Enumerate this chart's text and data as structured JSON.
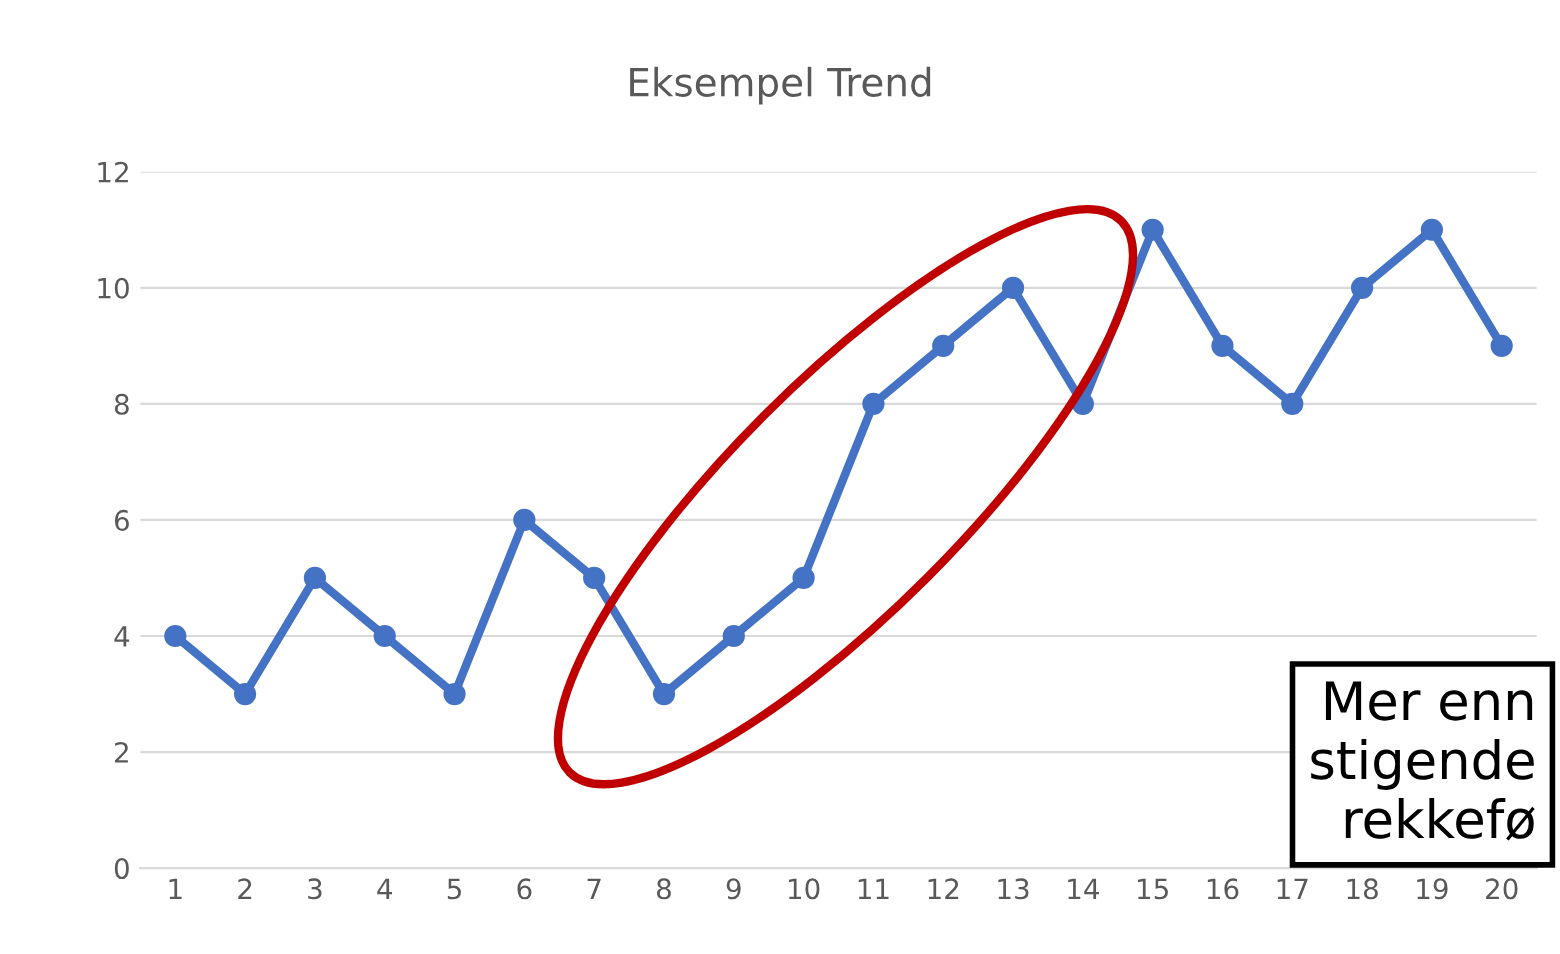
{
  "chart_data": {
    "type": "line",
    "title": "Eksempel Trend",
    "categories": [
      "1",
      "2",
      "3",
      "4",
      "5",
      "6",
      "7",
      "8",
      "9",
      "10",
      "11",
      "12",
      "13",
      "14",
      "15",
      "16",
      "17",
      "18",
      "19",
      "20"
    ],
    "series": [
      {
        "color": "#4472c4",
        "values": [
          4,
          3,
          5,
          4,
          3,
          6,
          5,
          3,
          4,
          5,
          8,
          9,
          10,
          8,
          11,
          9,
          8,
          10,
          11,
          9
        ]
      }
    ],
    "ylim": [
      0,
      12
    ],
    "yticks": [
      0,
      2,
      4,
      6,
      8,
      10,
      12
    ],
    "grid": "y",
    "marker": "circle",
    "line_style": "solid",
    "annotations": [
      "Mer enn\nstigende\nrekkefø"
    ]
  }
}
